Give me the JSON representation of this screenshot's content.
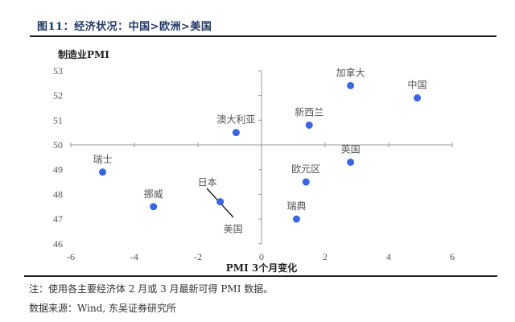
{
  "figure": {
    "title": "图11：经济状况：中国>欧洲>美国",
    "note": "注：使用各主要经济体 2 月或 3 月最新可得 PMI 数据。",
    "source": "数据来源：Wind, 东吴证券研究所"
  },
  "colors": {
    "title": "#1f3864",
    "point": "#3a66e0",
    "axis": "#999999"
  },
  "chart_data": {
    "type": "scatter",
    "title": "图11：经济状况：中国>欧洲>美国",
    "xlabel": "PMI 3个月变化",
    "ylabel": "制造业PMI",
    "xlim": [
      -6,
      6
    ],
    "ylim": [
      46,
      53
    ],
    "x_ticks": [
      -6,
      -4,
      -2,
      0,
      2,
      4,
      6
    ],
    "y_ticks": [
      46,
      47,
      48,
      49,
      50,
      51,
      52,
      53
    ],
    "axis_cross": {
      "x": 0,
      "y": 50
    },
    "grid": false,
    "legend": null,
    "points": [
      {
        "label": "加拿大",
        "x": 2.8,
        "y": 52.4
      },
      {
        "label": "中国",
        "x": 4.9,
        "y": 51.9
      },
      {
        "label": "新西兰",
        "x": 1.5,
        "y": 50.8
      },
      {
        "label": "澳大利亚",
        "x": -0.8,
        "y": 50.5
      },
      {
        "label": "英国",
        "x": 2.8,
        "y": 49.3
      },
      {
        "label": "瑞士",
        "x": -5.0,
        "y": 48.9
      },
      {
        "label": "欧元区",
        "x": 1.4,
        "y": 48.5
      },
      {
        "label": "日本",
        "x": -1.3,
        "y": 47.7
      },
      {
        "label": "美国",
        "x": -1.3,
        "y": 47.7
      },
      {
        "label": "挪威",
        "x": -3.4,
        "y": 47.5
      },
      {
        "label": "瑞典",
        "x": 1.1,
        "y": 47.0
      }
    ]
  }
}
